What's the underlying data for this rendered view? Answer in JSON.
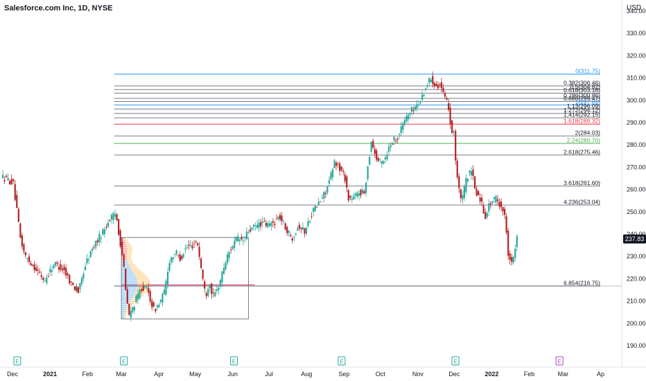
{
  "header": {
    "title": "Salesforce.com Inc, 1D, NYSE",
    "currency": "USD"
  },
  "colors": {
    "up": "#26a69a",
    "down": "#b22222",
    "grid_line": "#787b86",
    "fib_blue": "#2196f3",
    "fib_red": "#f23645",
    "fib_green": "#4caf50",
    "last_price_bg": "#131722",
    "earnings_green": "#26a69a",
    "earnings_purple": "#ab47bc"
  },
  "chart_data": {
    "type": "candlestick",
    "y_axis": {
      "min": 180,
      "max": 340,
      "ticks": [
        "180.00",
        "190.00",
        "200.00",
        "210.00",
        "220.00",
        "230.00",
        "240.00",
        "250.00",
        "260.00",
        "270.00",
        "280.00",
        "290.00",
        "300.00",
        "310.00",
        "320.00",
        "330.00",
        "340.00"
      ]
    },
    "x_axis": {
      "labels": [
        {
          "label": "Dec",
          "day": 0,
          "bold": false
        },
        {
          "label": "2021",
          "day": 31,
          "bold": true
        },
        {
          "label": "Feb",
          "day": 62,
          "bold": false
        },
        {
          "label": "Mar",
          "day": 90,
          "bold": false
        },
        {
          "label": "Apr",
          "day": 121,
          "bold": false
        },
        {
          "label": "May",
          "day": 151,
          "bold": false
        },
        {
          "label": "Jun",
          "day": 182,
          "bold": false
        },
        {
          "label": "Jul",
          "day": 212,
          "bold": false
        },
        {
          "label": "Aug",
          "day": 243,
          "bold": false
        },
        {
          "label": "Sep",
          "day": 274,
          "bold": false
        },
        {
          "label": "Oct",
          "day": 304,
          "bold": false
        },
        {
          "label": "Nov",
          "day": 335,
          "bold": false
        },
        {
          "label": "Dec",
          "day": 365,
          "bold": false
        },
        {
          "label": "2022",
          "day": 396,
          "bold": true
        },
        {
          "label": "Feb",
          "day": 427,
          "bold": false
        },
        {
          "label": "Mar",
          "day": 455,
          "bold": false
        },
        {
          "label": "Ap",
          "day": 486,
          "bold": false
        }
      ]
    },
    "fib_levels": [
      {
        "label": "0(311.75)",
        "price": 311.75,
        "color": "blue"
      },
      {
        "label": "0.382(306.46)",
        "price": 306.46,
        "color": "gray"
      },
      {
        "label": "0.5(304.82)",
        "price": 304.82,
        "color": "gray"
      },
      {
        "label": "0.618(303.18)",
        "price": 303.18,
        "color": "gray"
      },
      {
        "label": "0.786(300.86)",
        "price": 300.86,
        "color": "gray"
      },
      {
        "label": "0.886(299.47)",
        "price": 299.47,
        "color": "gray"
      },
      {
        "label": "1(297.89)",
        "price": 297.89,
        "color": "blue"
      },
      {
        "label": "1.13(296.09)",
        "price": 296.09,
        "color": "gray"
      },
      {
        "label": "1.272(294.12)",
        "price": 294.12,
        "color": "gray"
      },
      {
        "label": "1.414(292.15)",
        "price": 292.15,
        "color": "gray"
      },
      {
        "label": "1.618(289.32)",
        "price": 289.32,
        "color": "red"
      },
      {
        "label": "2(284.03)",
        "price": 284.03,
        "color": "gray"
      },
      {
        "label": "2.24(280.70)",
        "price": 280.7,
        "color": "green"
      },
      {
        "label": "2.618(275.46)",
        "price": 275.46,
        "color": "gray"
      },
      {
        "label": "3.618(261.60)",
        "price": 261.6,
        "color": "gray"
      },
      {
        "label": "4.236(253.04)",
        "price": 253.04,
        "color": "gray"
      },
      {
        "label": "6.854(216.75)",
        "price": 216.75,
        "color": "gray"
      }
    ],
    "last_price": "237.83",
    "volume_profile_box": {
      "day_start": 90,
      "day_end": 195,
      "price_low": 202,
      "price_high": 238.5
    },
    "earnings_markers": [
      {
        "day": 4,
        "type": "past",
        "text": "E"
      },
      {
        "day": 92,
        "type": "past",
        "text": "E"
      },
      {
        "day": 183,
        "type": "past",
        "text": "E"
      },
      {
        "day": 272,
        "type": "past",
        "text": "E"
      },
      {
        "day": 366,
        "type": "past",
        "text": "E"
      },
      {
        "day": 452,
        "type": "future",
        "text": "E"
      }
    ],
    "price_path": [
      [
        -8,
        266
      ],
      [
        2,
        263
      ],
      [
        8,
        238
      ],
      [
        12,
        230
      ],
      [
        20,
        225
      ],
      [
        28,
        219
      ],
      [
        36,
        227
      ],
      [
        44,
        224
      ],
      [
        50,
        218
      ],
      [
        56,
        214
      ],
      [
        62,
        227
      ],
      [
        70,
        236
      ],
      [
        76,
        241
      ],
      [
        82,
        247
      ],
      [
        87,
        249
      ],
      [
        90,
        238
      ],
      [
        93,
        228
      ],
      [
        95,
        214
      ],
      [
        98,
        203
      ],
      [
        103,
        210
      ],
      [
        108,
        216
      ],
      [
        113,
        215
      ],
      [
        118,
        206
      ],
      [
        122,
        208
      ],
      [
        127,
        214
      ],
      [
        131,
        228
      ],
      [
        136,
        232
      ],
      [
        140,
        229
      ],
      [
        145,
        234
      ],
      [
        150,
        235
      ],
      [
        154,
        237
      ],
      [
        157,
        226
      ],
      [
        161,
        212
      ],
      [
        164,
        219
      ],
      [
        167,
        212
      ],
      [
        170,
        214
      ],
      [
        173,
        219
      ],
      [
        177,
        227
      ],
      [
        182,
        234
      ],
      [
        187,
        238
      ],
      [
        192,
        237
      ],
      [
        196,
        241
      ],
      [
        201,
        243
      ],
      [
        207,
        245
      ],
      [
        212,
        244
      ],
      [
        217,
        245
      ],
      [
        222,
        248
      ],
      [
        227,
        243
      ],
      [
        232,
        238
      ],
      [
        238,
        244
      ],
      [
        243,
        241
      ],
      [
        249,
        250
      ],
      [
        252,
        252
      ],
      [
        256,
        255
      ],
      [
        260,
        259
      ],
      [
        264,
        265
      ],
      [
        268,
        273
      ],
      [
        271,
        270
      ],
      [
        276,
        266
      ],
      [
        279,
        256
      ],
      [
        283,
        256
      ],
      [
        288,
        259
      ],
      [
        292,
        258
      ],
      [
        295,
        270
      ],
      [
        298,
        282
      ],
      [
        302,
        274
      ],
      [
        306,
        272
      ],
      [
        310,
        275
      ],
      [
        314,
        281
      ],
      [
        320,
        284
      ],
      [
        326,
        292
      ],
      [
        332,
        296
      ],
      [
        338,
        299
      ],
      [
        343,
        306
      ],
      [
        347,
        310
      ],
      [
        351,
        307
      ],
      [
        355,
        307
      ],
      [
        359,
        300
      ],
      [
        362,
        297
      ],
      [
        364,
        285
      ],
      [
        366,
        288
      ],
      [
        367,
        276
      ],
      [
        370,
        260
      ],
      [
        373,
        255
      ],
      [
        377,
        266
      ],
      [
        381,
        268
      ],
      [
        384,
        259
      ],
      [
        388,
        256
      ],
      [
        392,
        248
      ],
      [
        396,
        254
      ],
      [
        401,
        256
      ],
      [
        406,
        252
      ],
      [
        409,
        246
      ],
      [
        411,
        232
      ],
      [
        414,
        227
      ],
      [
        416,
        230
      ],
      [
        418,
        238
      ]
    ]
  }
}
